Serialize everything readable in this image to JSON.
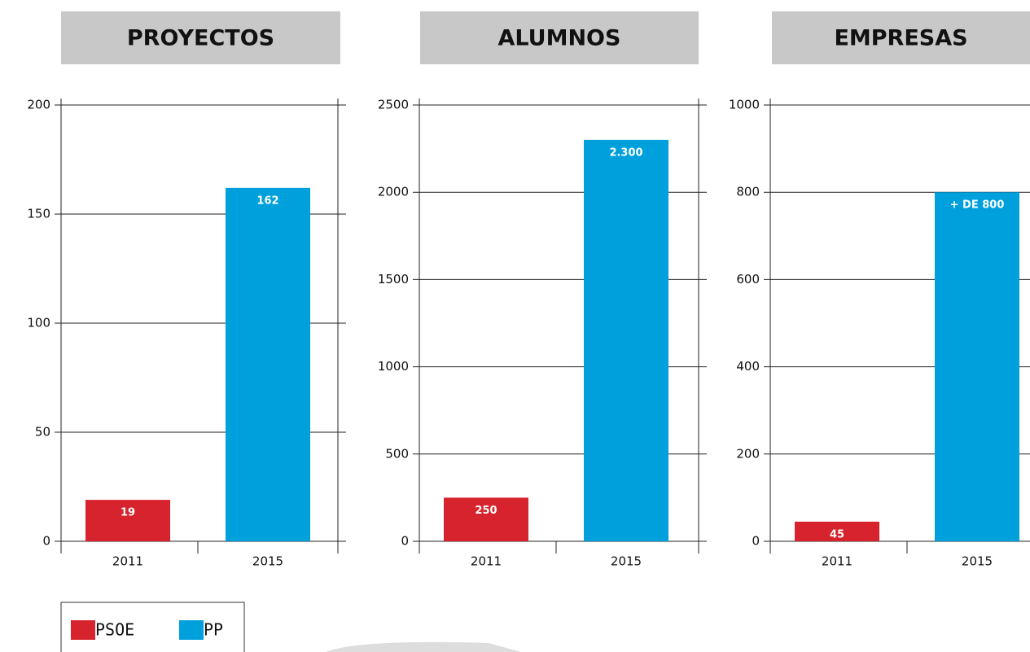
{
  "chart_data": [
    {
      "type": "bar",
      "title": "PROYECTOS",
      "categories": [
        "2011",
        "2015"
      ],
      "values": [
        19,
        162
      ],
      "colors": [
        "#d6232d",
        "#00a0dc"
      ],
      "ylim": [
        0,
        200
      ],
      "yticks": [
        0,
        50,
        100,
        150,
        200
      ],
      "grid": true
    },
    {
      "type": "bar",
      "title": "ALUMNOS",
      "categories": [
        "2011",
        "2015"
      ],
      "values": [
        250,
        2300
      ],
      "value_labels": [
        "250",
        "2.300"
      ],
      "colors": [
        "#d6232d",
        "#00a0dc"
      ],
      "ylim": [
        0,
        2500
      ],
      "yticks": [
        0,
        500,
        1000,
        1500,
        2000,
        2500
      ],
      "grid": true
    },
    {
      "type": "bar",
      "title": "EMPRESAS",
      "categories": [
        "2011",
        "2015"
      ],
      "values": [
        45,
        800
      ],
      "value_labels": [
        "45",
        "+ DE 800"
      ],
      "colors": [
        "#d6232d",
        "#00a0dc"
      ],
      "ylim": [
        0,
        1000
      ],
      "yticks": [
        0,
        200,
        400,
        600,
        800,
        1000
      ],
      "grid": true
    }
  ],
  "legend": [
    {
      "name": "PSOE",
      "color": "#d6232d"
    },
    {
      "name": "PP",
      "color": "#00a0dc"
    }
  ]
}
